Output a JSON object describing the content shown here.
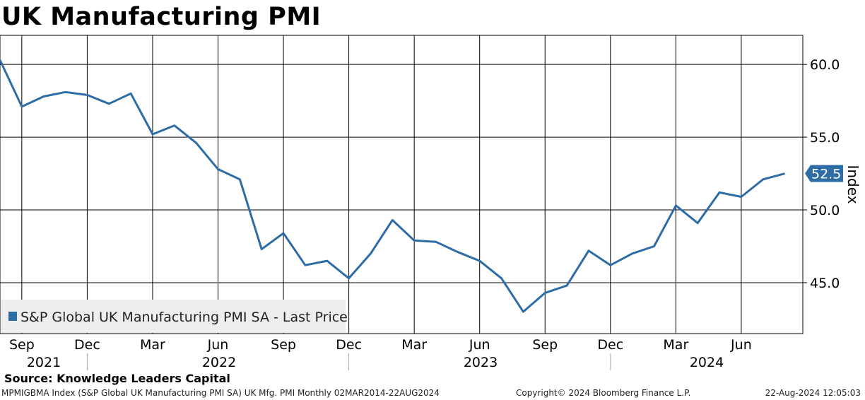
{
  "title": "UK Manufacturing PMI",
  "source": "Source: Knowledge Leaders Capital",
  "footer": {
    "left": "MPMIGBMA Index (S&P Global UK Manufacturing PMI SA) UK Mfg. PMI  Monthly 02MAR2014-22AUG2024",
    "center": "Copyright© 2024 Bloomberg Finance L.P.",
    "right": "22-Aug-2024 12:05:03"
  },
  "colors": {
    "series": "#2e6ca6",
    "grid": "#000000",
    "legend_bg": "#eeeeee"
  },
  "chart_data": {
    "type": "line",
    "title": "UK Manufacturing PMI",
    "ylabel": "Index",
    "ylim": [
      41.5,
      62
    ],
    "y_axis_side": "right",
    "yticks": [
      45.0,
      50.0,
      55.0,
      60.0
    ],
    "ytick_labels": [
      "45.0",
      "50.0",
      "55.0",
      "60.0"
    ],
    "x_tick_labels": [
      "Sep",
      "Dec",
      "Mar",
      "Jun",
      "Sep",
      "Dec",
      "Mar",
      "Jun",
      "Sep",
      "Dec",
      "Mar",
      "Jun"
    ],
    "x_year_labels": [
      "2021",
      "2022",
      "2023",
      "2024"
    ],
    "grid": true,
    "legend_position": "bottom-left",
    "last_value_label": "52.5",
    "x": [
      "2021-08",
      "2021-09",
      "2021-10",
      "2021-11",
      "2021-12",
      "2022-01",
      "2022-02",
      "2022-03",
      "2022-04",
      "2022-05",
      "2022-06",
      "2022-07",
      "2022-08",
      "2022-09",
      "2022-10",
      "2022-11",
      "2022-12",
      "2023-01",
      "2023-02",
      "2023-03",
      "2023-04",
      "2023-05",
      "2023-06",
      "2023-07",
      "2023-08",
      "2023-09",
      "2023-10",
      "2023-11",
      "2023-12",
      "2024-01",
      "2024-02",
      "2024-03",
      "2024-04",
      "2024-05",
      "2024-06",
      "2024-07",
      "2024-08"
    ],
    "series": [
      {
        "name": "S&P Global UK Manufacturing PMI SA - Last Price",
        "values": [
          60.3,
          57.1,
          57.8,
          58.1,
          57.9,
          57.3,
          58.0,
          55.2,
          55.8,
          54.6,
          52.8,
          52.1,
          47.3,
          48.4,
          46.2,
          46.5,
          45.3,
          47.0,
          49.3,
          47.9,
          47.8,
          47.1,
          46.5,
          45.3,
          43.0,
          44.3,
          44.8,
          47.2,
          46.2,
          47.0,
          47.5,
          50.3,
          49.1,
          51.2,
          50.9,
          52.1,
          52.5
        ]
      }
    ]
  }
}
